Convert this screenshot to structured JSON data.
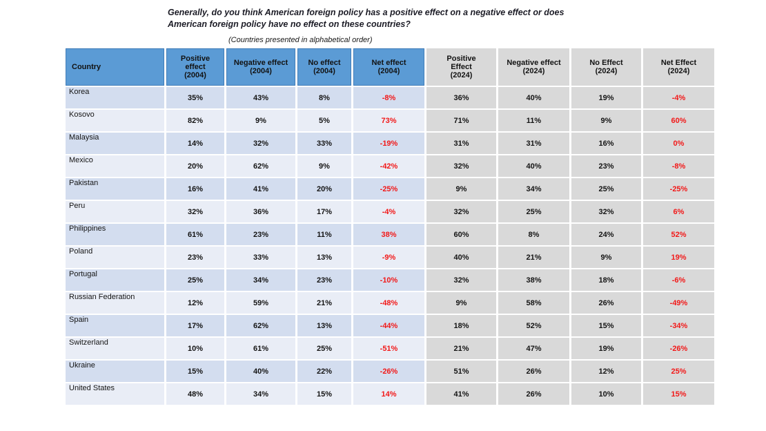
{
  "title": {
    "line1": "Generally, do you think American foreign policy has a positive effect on a negative effect or does",
    "line2": "American foreign policy have no effect on these countries?"
  },
  "subtitle": "(Countries presented in alphabetical order)",
  "colors": {
    "header_blue": "#5B9BD5",
    "header_border": "#3F7CB8",
    "row_blue_dark": "#D3DDEF",
    "row_blue_light": "#E9EDF6",
    "cell_gray": "#D9D9D9",
    "net_red": "#F21818",
    "text_dark": "#1A1A1A"
  },
  "table": {
    "columns": [
      {
        "id": "country",
        "label": "Country",
        "group": "g04"
      },
      {
        "id": "pos2004",
        "label": "Positive\neffect\n(2004)",
        "group": "g04"
      },
      {
        "id": "neg2004",
        "label": "Negative effect\n(2004)",
        "group": "g04"
      },
      {
        "id": "no2004",
        "label": "No effect\n(2004)",
        "group": "g04"
      },
      {
        "id": "net2004",
        "label": "Net effect\n(2004)",
        "group": "g04",
        "net": true
      },
      {
        "id": "pos2024",
        "label": "Positive\nEffect\n(2024)",
        "group": "g24"
      },
      {
        "id": "neg2024",
        "label": "Negative effect\n(2024)",
        "group": "g24"
      },
      {
        "id": "no2024",
        "label": "No Effect\n(2024)",
        "group": "g24"
      },
      {
        "id": "net2024",
        "label": "Net Effect\n(2024)",
        "group": "g24",
        "net": true
      }
    ]
  },
  "chart_data": {
    "type": "table",
    "title": "Generally, do you think American foreign policy has a positive effect on a negative effect or does American foreign policy have no effect on these countries?",
    "subtitle": "(Countries presented in alphabetical order)",
    "value_unit": "%",
    "categories": [
      "Korea",
      "Kosovo",
      "Malaysia",
      "Mexico",
      "Pakistan",
      "Peru",
      "Philippines",
      "Poland",
      "Portugal",
      "Russian Federation",
      "Spain",
      "Switzerland",
      "Ukraine",
      "United States"
    ],
    "series": [
      {
        "name": "Positive effect (2004)",
        "values": [
          35,
          82,
          14,
          20,
          16,
          32,
          61,
          23,
          25,
          12,
          17,
          10,
          15,
          48
        ]
      },
      {
        "name": "Negative effect (2004)",
        "values": [
          43,
          9,
          32,
          62,
          41,
          36,
          23,
          33,
          34,
          59,
          62,
          61,
          40,
          34
        ]
      },
      {
        "name": "No effect (2004)",
        "values": [
          8,
          5,
          33,
          9,
          20,
          17,
          11,
          13,
          23,
          21,
          13,
          25,
          22,
          15
        ]
      },
      {
        "name": "Net effect (2004)",
        "values": [
          -8,
          73,
          -19,
          -42,
          -25,
          -4,
          38,
          -9,
          -10,
          -48,
          -44,
          -51,
          -26,
          14
        ]
      },
      {
        "name": "Positive Effect (2024)",
        "values": [
          36,
          71,
          31,
          32,
          9,
          32,
          60,
          40,
          32,
          9,
          18,
          21,
          51,
          41
        ]
      },
      {
        "name": "Negative effect (2024)",
        "values": [
          40,
          11,
          31,
          40,
          34,
          25,
          8,
          21,
          38,
          58,
          52,
          47,
          26,
          26
        ]
      },
      {
        "name": "No Effect (2024)",
        "values": [
          19,
          9,
          16,
          23,
          25,
          32,
          24,
          9,
          18,
          26,
          15,
          19,
          12,
          10
        ]
      },
      {
        "name": "Net Effect (2024)",
        "values": [
          -4,
          60,
          0,
          -8,
          -25,
          6,
          52,
          19,
          -6,
          -49,
          -34,
          -26,
          25,
          15
        ]
      }
    ]
  }
}
